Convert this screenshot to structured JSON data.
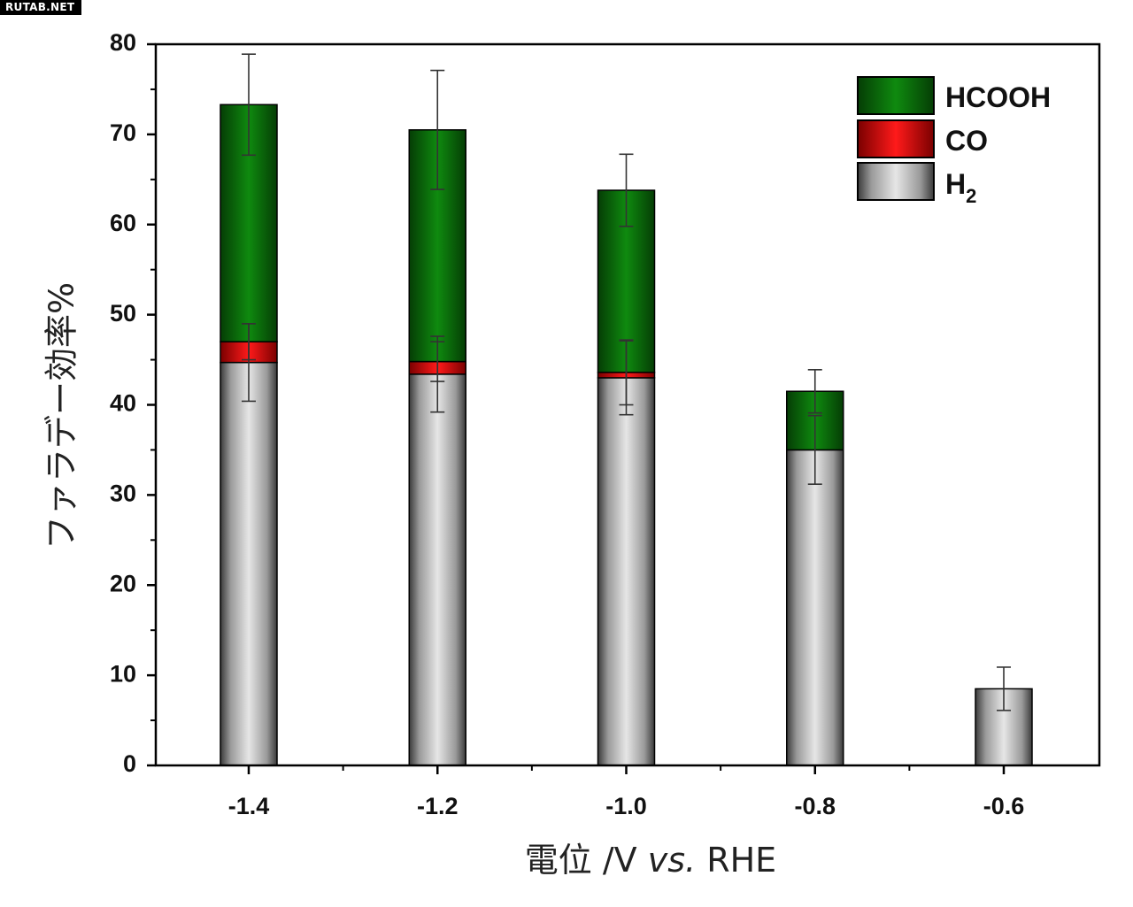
{
  "watermark": "RUTAB.NET",
  "chart_data": {
    "type": "bar",
    "stacked": true,
    "categories": [
      "-1.4",
      "-1.2",
      "-1.0",
      "-0.8",
      "-0.6"
    ],
    "xlabel": "電位 /V vs. RHE",
    "xlabel_parts": {
      "main": "電位 /V ",
      "italic": "vs.",
      "tail": " RHE"
    },
    "ylabel": "ファラデー効率%",
    "ylim": [
      0,
      80
    ],
    "yticks": [
      "0",
      "10",
      "20",
      "30",
      "40",
      "50",
      "60",
      "70",
      "80"
    ],
    "legend_position": "top-right",
    "series": [
      {
        "name": "H2",
        "label_main": "H",
        "label_sub": "2",
        "color": "#b5b5b5",
        "values": [
          44.7,
          43.4,
          43.0,
          35.0,
          8.5
        ],
        "errors": [
          4.3,
          4.2,
          4.1,
          3.8,
          2.4
        ]
      },
      {
        "name": "CO",
        "label_main": "CO",
        "label_sub": "",
        "color": "#e00000",
        "values": [
          2.3,
          1.4,
          0.6,
          0,
          0
        ],
        "errors": [
          2.0,
          2.2,
          3.6,
          0,
          0
        ]
      },
      {
        "name": "HCOOH",
        "label_main": "HCOOH",
        "label_sub": "",
        "color": "#0c7a0c",
        "values": [
          26.3,
          25.7,
          20.2,
          6.5,
          0
        ],
        "errors": [
          5.6,
          6.6,
          4.0,
          2.4,
          0
        ]
      }
    ]
  }
}
